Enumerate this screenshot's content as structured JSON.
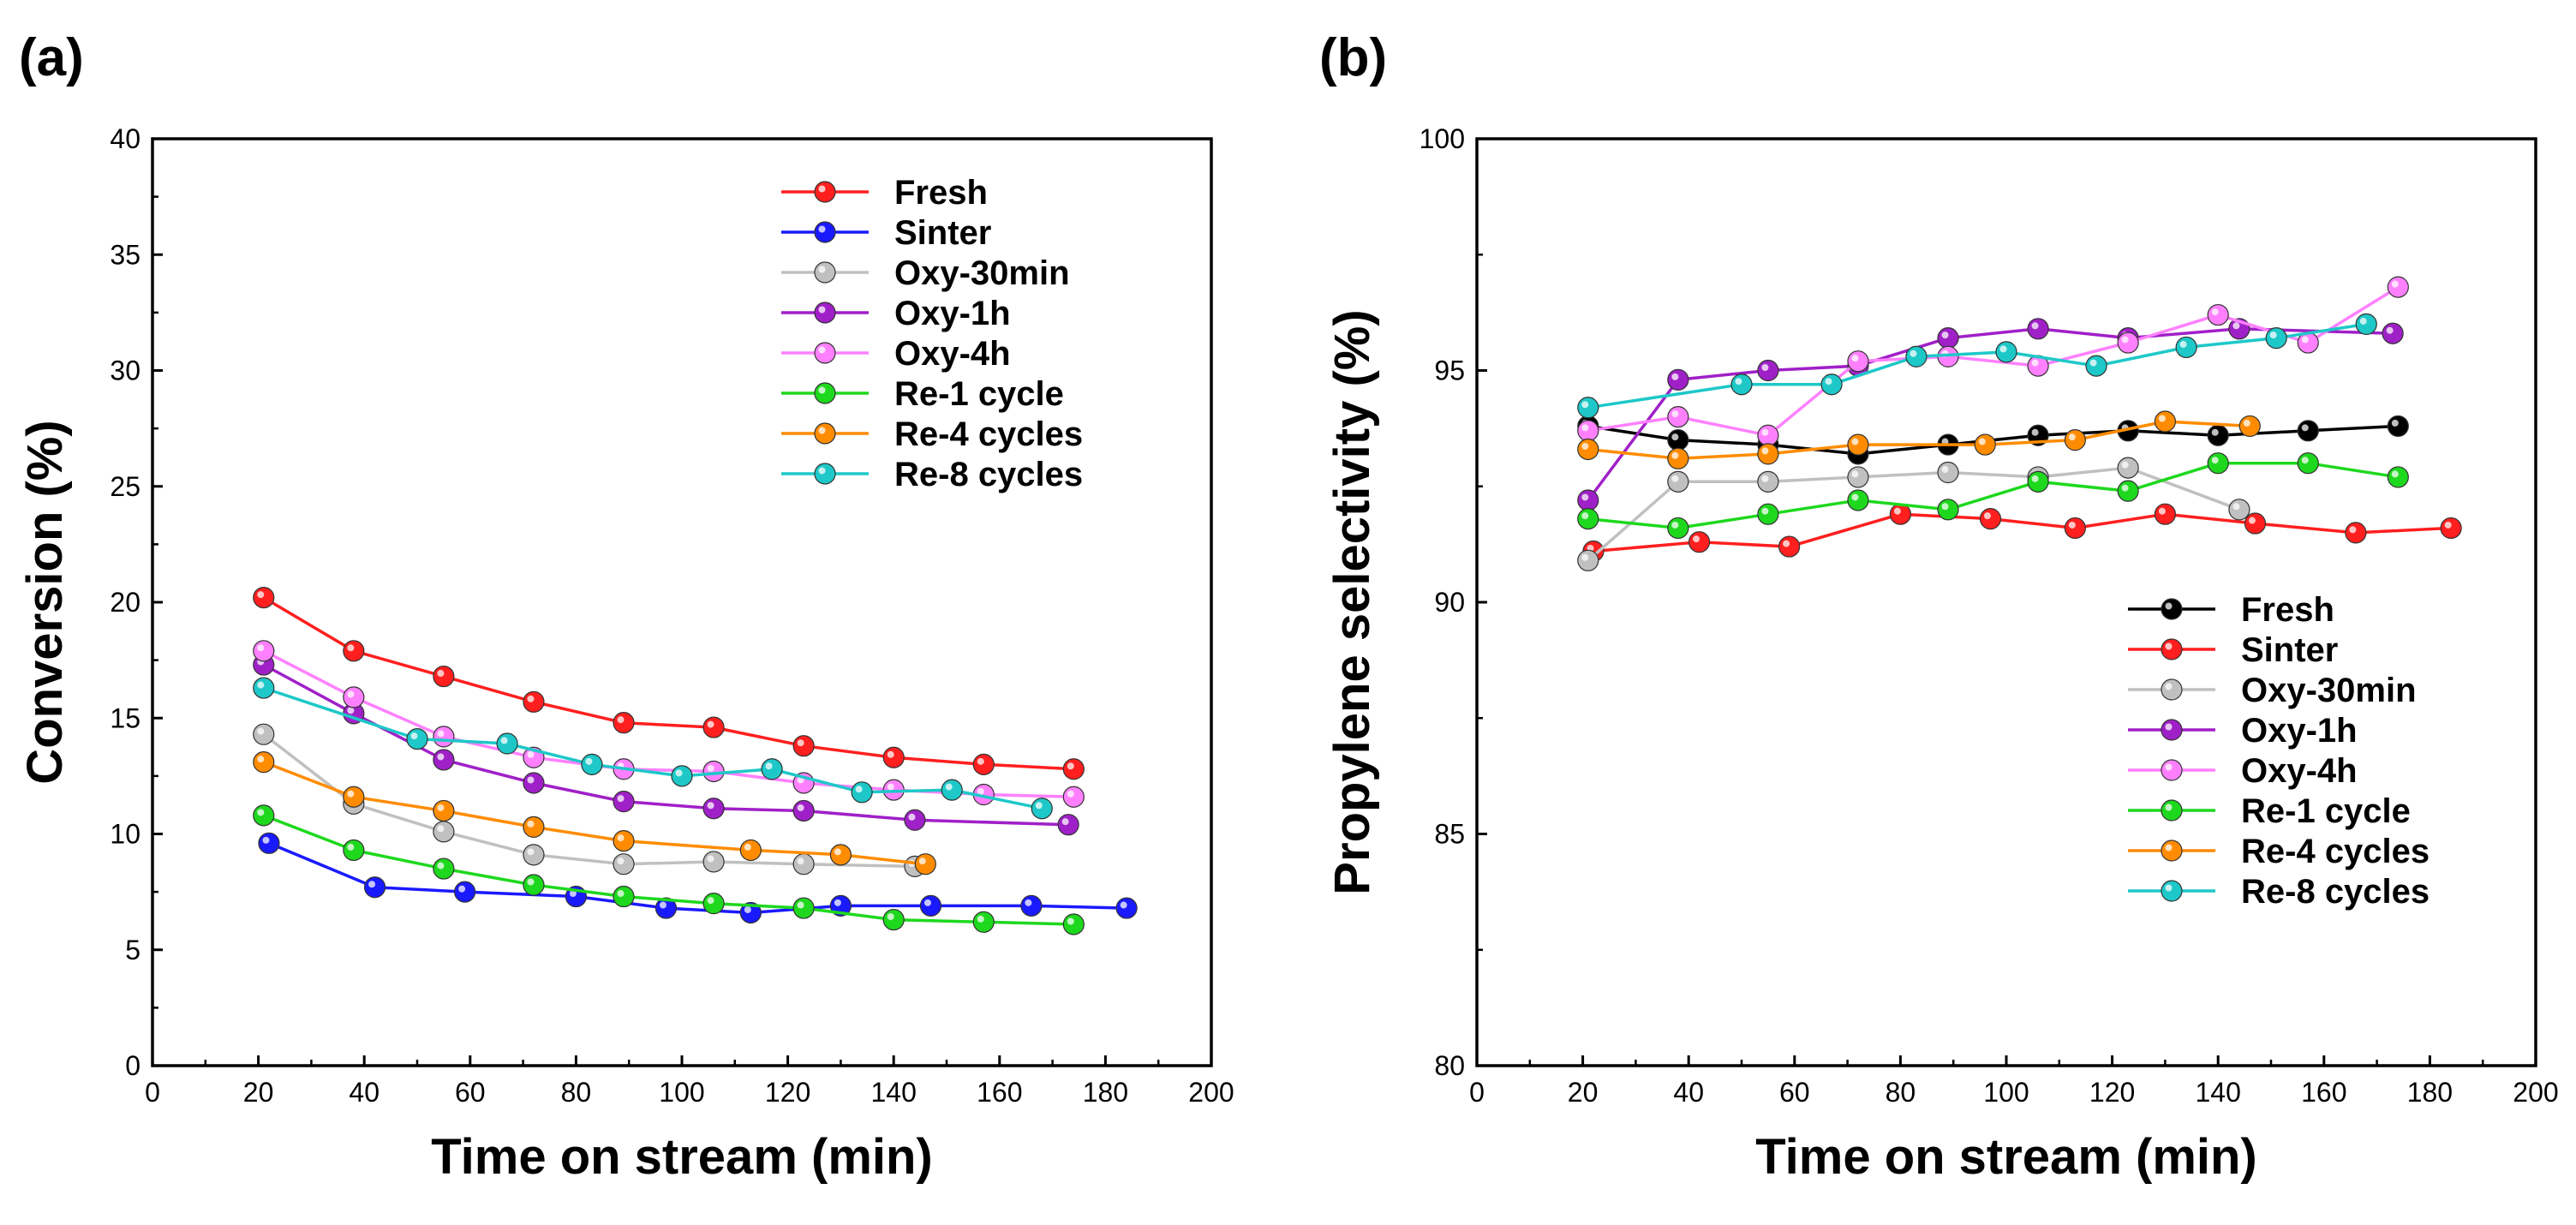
{
  "chart_data": [
    {
      "panel": "(a)",
      "type": "line",
      "title": "",
      "xlabel": "Time on stream (min)",
      "ylabel": "Conversion (%)",
      "xlim": [
        0,
        200
      ],
      "ylim": [
        0,
        40
      ],
      "xticks": [
        0,
        20,
        40,
        60,
        80,
        100,
        120,
        140,
        160,
        180,
        200
      ],
      "yticks": [
        0,
        5,
        10,
        15,
        20,
        25,
        30,
        35,
        40
      ],
      "grid": false,
      "legend_position": "top-right",
      "series": [
        {
          "name": "Fresh",
          "color": "#ff1f1f",
          "x": [
            21,
            38,
            55,
            72,
            89,
            106,
            123,
            140,
            157,
            174
          ],
          "y": [
            20.2,
            17.9,
            16.8,
            15.7,
            14.8,
            14.6,
            13.8,
            13.3,
            13.0,
            12.8
          ]
        },
        {
          "name": "Sinter",
          "color": "#1a1aff",
          "x": [
            22,
            42,
            59,
            80,
            97,
            113,
            130,
            147,
            166,
            184
          ],
          "y": [
            9.6,
            7.7,
            7.5,
            7.3,
            6.8,
            6.6,
            6.9,
            6.9,
            6.9,
            6.8
          ]
        },
        {
          "name": "Oxy-30min",
          "color": "#c0c0c0",
          "x": [
            21,
            38,
            55,
            72,
            89,
            106,
            123,
            144
          ],
          "y": [
            14.3,
            11.3,
            10.1,
            9.1,
            8.7,
            8.8,
            8.7,
            8.6
          ]
        },
        {
          "name": "Oxy-1h",
          "color": "#a020c8",
          "x": [
            21,
            38,
            55,
            72,
            89,
            106,
            123,
            144,
            173
          ],
          "y": [
            17.3,
            15.2,
            13.2,
            12.2,
            11.4,
            11.1,
            11.0,
            10.6,
            10.4
          ]
        },
        {
          "name": "Oxy-4h",
          "color": "#ff80ff",
          "x": [
            21,
            38,
            55,
            72,
            89,
            106,
            123,
            140,
            157,
            174
          ],
          "y": [
            17.9,
            15.9,
            14.2,
            13.3,
            12.8,
            12.7,
            12.2,
            11.9,
            11.7,
            11.6
          ]
        },
        {
          "name": "Re-1 cycle",
          "color": "#1ed81e",
          "x": [
            21,
            38,
            55,
            72,
            89,
            106,
            123,
            140,
            157,
            174
          ],
          "y": [
            10.8,
            9.3,
            8.5,
            7.8,
            7.3,
            7.0,
            6.8,
            6.3,
            6.2,
            6.1
          ]
        },
        {
          "name": "Re-4 cycles",
          "color": "#ff8c00",
          "x": [
            21,
            38,
            55,
            72,
            89,
            113,
            130,
            146
          ],
          "y": [
            13.1,
            11.6,
            11.0,
            10.3,
            9.7,
            9.3,
            9.1,
            8.7
          ]
        },
        {
          "name": "Re-8 cycles",
          "color": "#1ec8c8",
          "x": [
            21,
            50,
            67,
            83,
            100,
            117,
            134,
            151,
            168
          ],
          "y": [
            16.3,
            14.1,
            13.9,
            13.0,
            12.5,
            12.8,
            11.8,
            11.9,
            11.1
          ]
        }
      ]
    },
    {
      "panel": "(b)",
      "type": "line",
      "title": "",
      "xlabel": "Time on stream (min)",
      "ylabel": "Propylene selectivity (%)",
      "xlim": [
        0,
        200
      ],
      "ylim": [
        80,
        100
      ],
      "xticks": [
        0,
        20,
        40,
        60,
        80,
        100,
        120,
        140,
        160,
        180,
        200
      ],
      "yticks": [
        80,
        85,
        90,
        95,
        100
      ],
      "grid": false,
      "legend_position": "bottom-right",
      "series": [
        {
          "name": "Fresh",
          "color": "#000000",
          "x": [
            21,
            38,
            55,
            72,
            89,
            106,
            123,
            140,
            157,
            174
          ],
          "y": [
            93.8,
            93.5,
            93.4,
            93.2,
            93.4,
            93.6,
            93.7,
            93.6,
            93.7,
            93.8
          ]
        },
        {
          "name": "Sinter",
          "color": "#ff1f1f",
          "x": [
            22,
            42,
            59,
            80,
            97,
            113,
            130,
            147,
            166,
            184
          ],
          "y": [
            91.1,
            91.3,
            91.2,
            91.9,
            91.8,
            91.6,
            91.9,
            91.7,
            91.5,
            91.6
          ]
        },
        {
          "name": "Oxy-30min",
          "color": "#c0c0c0",
          "x": [
            21,
            38,
            55,
            72,
            89,
            106,
            123,
            144
          ],
          "y": [
            90.9,
            92.6,
            92.6,
            92.7,
            92.8,
            92.7,
            92.9,
            92.0
          ]
        },
        {
          "name": "Oxy-1h",
          "color": "#a020c8",
          "x": [
            21,
            38,
            55,
            72,
            89,
            106,
            123,
            144,
            173
          ],
          "y": [
            92.2,
            94.8,
            95.0,
            95.1,
            95.7,
            95.9,
            95.7,
            95.9,
            95.8
          ]
        },
        {
          "name": "Oxy-4h",
          "color": "#ff80ff",
          "x": [
            21,
            38,
            55,
            72,
            89,
            106,
            123,
            140,
            157,
            174
          ],
          "y": [
            93.7,
            94.0,
            93.6,
            95.2,
            95.3,
            95.1,
            95.6,
            96.2,
            95.6,
            96.8
          ]
        },
        {
          "name": "Re-1 cycle",
          "color": "#1ed81e",
          "x": [
            21,
            38,
            55,
            72,
            89,
            106,
            123,
            140,
            157,
            174
          ],
          "y": [
            91.8,
            91.6,
            91.9,
            92.2,
            92.0,
            92.6,
            92.4,
            93.0,
            93.0,
            92.7
          ]
        },
        {
          "name": "Re-4 cycles",
          "color": "#ff8c00",
          "x": [
            21,
            38,
            55,
            72,
            96,
            113,
            130,
            146
          ],
          "y": [
            93.3,
            93.1,
            93.2,
            93.4,
            93.4,
            93.5,
            93.9,
            93.8
          ]
        },
        {
          "name": "Re-8 cycles",
          "color": "#1ec8c8",
          "x": [
            21,
            50,
            67,
            83,
            100,
            117,
            134,
            151,
            168
          ],
          "y": [
            94.2,
            94.7,
            94.7,
            95.3,
            95.4,
            95.1,
            95.5,
            95.7,
            96.0
          ]
        }
      ]
    }
  ]
}
